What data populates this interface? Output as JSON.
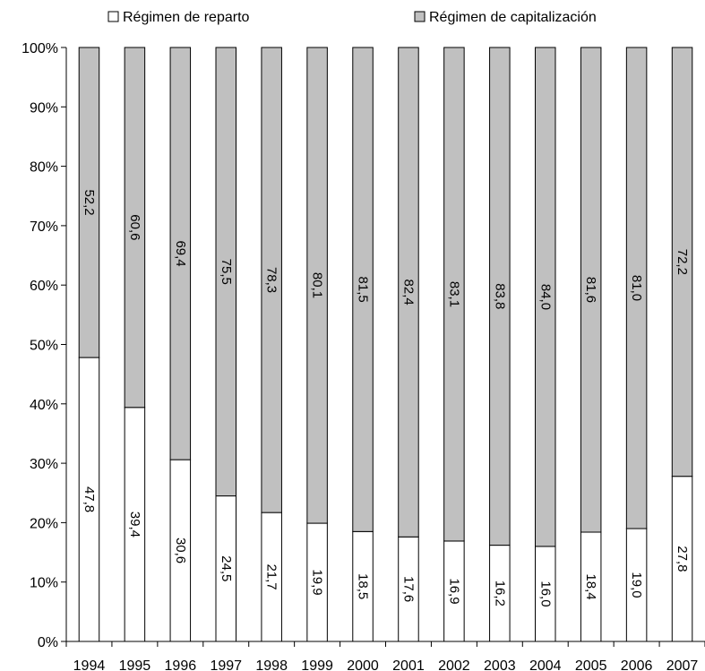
{
  "chart_data": {
    "type": "bar",
    "stacked": true,
    "percent_stacked": true,
    "categories": [
      "1994",
      "1995",
      "1996",
      "1997",
      "1998",
      "1999",
      "2000",
      "2001",
      "2002",
      "2003",
      "2004",
      "2005",
      "2006",
      "2007"
    ],
    "series": [
      {
        "name": "Régimen de reparto",
        "color": "#ffffff",
        "values": [
          47.8,
          39.4,
          30.6,
          24.5,
          21.7,
          19.9,
          18.5,
          17.6,
          16.9,
          16.2,
          16.0,
          18.4,
          19.0,
          27.8
        ],
        "labels": [
          "47,8",
          "39,4",
          "30,6",
          "24,5",
          "21,7",
          "19,9",
          "18,5",
          "17,6",
          "16,9",
          "16,2",
          "16,0",
          "18,4",
          "19,0",
          "27,8"
        ]
      },
      {
        "name": "Régimen de capitalización",
        "color": "#c0c0c0",
        "values": [
          52.2,
          60.6,
          69.4,
          75.5,
          78.3,
          80.1,
          81.5,
          82.4,
          83.1,
          83.8,
          84.0,
          81.6,
          81.0,
          72.2
        ],
        "labels": [
          "52,2",
          "60,6",
          "69,4",
          "75,5",
          "78,3",
          "80,1",
          "81,5",
          "82,4",
          "83,1",
          "83,8",
          "84,0",
          "81,6",
          "81,0",
          "72,2"
        ]
      }
    ],
    "y_ticks": [
      "0%",
      "10%",
      "20%",
      "30%",
      "40%",
      "50%",
      "60%",
      "70%",
      "80%",
      "90%",
      "100%"
    ],
    "ylim": [
      0,
      100
    ],
    "legend_position": "top",
    "grid": false
  }
}
